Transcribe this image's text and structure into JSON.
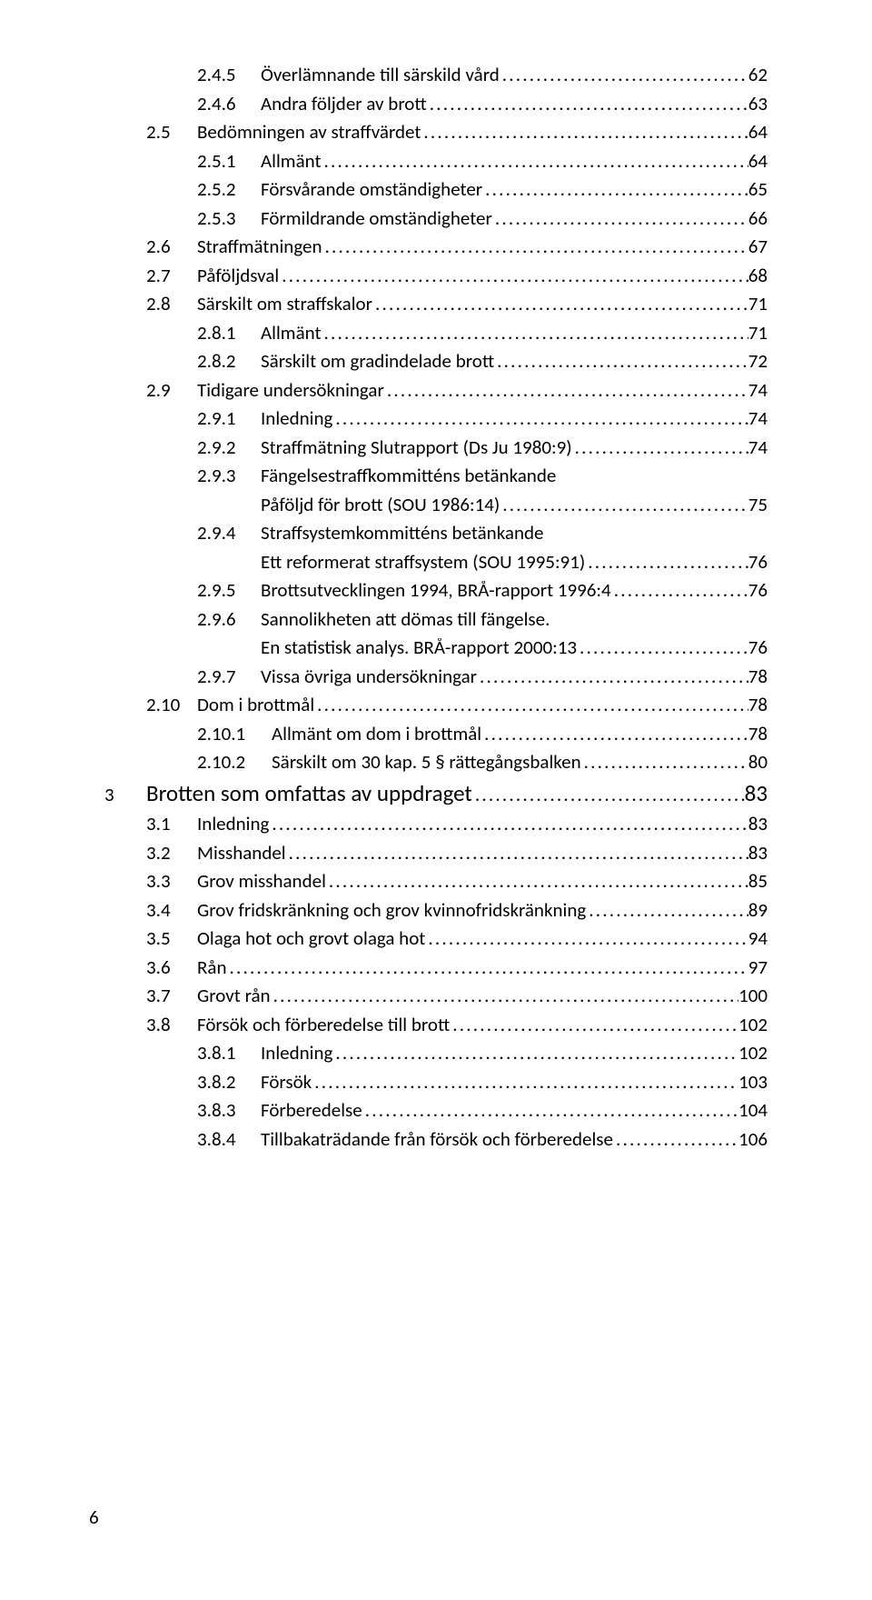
{
  "leader": "...............................................................................................................................................................",
  "indents": {
    "chapter_num_w": 46,
    "l1_pad": 46,
    "l1_num_w": 56,
    "l2_pad": 102,
    "l2a_num_w": 70,
    "l2b_num_w": 82,
    "l3_pad_a": 172,
    "l3_pad_b": 184
  },
  "toc": [
    {
      "lvl": "l2a",
      "num": "2.4.5",
      "label": "Överlämnande till särskild vård",
      "page": "62"
    },
    {
      "lvl": "l2a",
      "num": "2.4.6",
      "label": "Andra följder av brott",
      "page": "63"
    },
    {
      "lvl": "l1",
      "num": "2.5",
      "label": "Bedömningen av straffvärdet",
      "page": "64"
    },
    {
      "lvl": "l2a",
      "num": "2.5.1",
      "label": "Allmänt",
      "page": "64"
    },
    {
      "lvl": "l2a",
      "num": "2.5.2",
      "label": "Försvårande omständigheter",
      "page": "65"
    },
    {
      "lvl": "l2a",
      "num": "2.5.3",
      "label": "Förmildrande omständigheter",
      "page": "66"
    },
    {
      "lvl": "l1",
      "num": "2.6",
      "label": "Straffmätningen",
      "page": "67"
    },
    {
      "lvl": "l1",
      "num": "2.7",
      "label": "Påföljdsval",
      "page": "68"
    },
    {
      "lvl": "l1",
      "num": "2.8",
      "label": "Särskilt om straffskalor",
      "page": "71"
    },
    {
      "lvl": "l2a",
      "num": "2.8.1",
      "label": "Allmänt",
      "page": "71"
    },
    {
      "lvl": "l2a",
      "num": "2.8.2",
      "label": "Särskilt om gradindelade brott",
      "page": "72"
    },
    {
      "lvl": "l1",
      "num": "2.9",
      "label": "Tidigare undersökningar",
      "page": "74"
    },
    {
      "lvl": "l2a",
      "num": "2.9.1",
      "label": "Inledning",
      "page": "74"
    },
    {
      "lvl": "l2a",
      "num": "2.9.2",
      "label": "Straffmätning Slutrapport (Ds Ju 1980:9) ",
      "page": "74"
    },
    {
      "lvl": "l2a",
      "num": "2.9.3",
      "label": "Fängelsestraffkommitténs betänkande",
      "page": null
    },
    {
      "lvl": "l3a",
      "num": "",
      "label": "Påföljd för brott (SOU 1986:14)",
      "page": "75"
    },
    {
      "lvl": "l2a",
      "num": "2.9.4",
      "label": "Straffsystemkommitténs betänkande",
      "page": null
    },
    {
      "lvl": "l3a",
      "num": "",
      "label": "Ett reformerat straffsystem (SOU 1995:91)",
      "page": "76"
    },
    {
      "lvl": "l2a",
      "num": "2.9.5",
      "label": "Brottsutvecklingen 1994, BRÅ-rapport 1996:4",
      "page": "76"
    },
    {
      "lvl": "l2a",
      "num": "2.9.6",
      "label": "Sannolikheten att dömas till fängelse.",
      "page": null
    },
    {
      "lvl": "l3a",
      "num": "",
      "label": "En statistisk analys. BRÅ-rapport 2000:13",
      "page": "76"
    },
    {
      "lvl": "l2a",
      "num": "2.9.7",
      "label": "Vissa övriga undersökningar",
      "page": "78"
    },
    {
      "lvl": "l1",
      "num": "2.10",
      "label": "Dom i brottmål",
      "page": "78"
    },
    {
      "lvl": "l2b",
      "num": "2.10.1",
      "label": "Allmänt om dom i brottmål",
      "page": "78"
    },
    {
      "lvl": "l2b",
      "num": "2.10.2",
      "label": "Särskilt om 30 kap. 5 § rättegångsbalken",
      "page": "80"
    },
    {
      "lvl": "ch",
      "num": "3",
      "label": "Brotten som omfattas av uppdraget",
      "page": "83"
    },
    {
      "lvl": "l1",
      "num": "3.1",
      "label": "Inledning",
      "page": "83"
    },
    {
      "lvl": "l1",
      "num": "3.2",
      "label": "Misshandel",
      "page": "83"
    },
    {
      "lvl": "l1",
      "num": "3.3",
      "label": "Grov misshandel",
      "page": "85"
    },
    {
      "lvl": "l1",
      "num": "3.4",
      "label": "Grov fridskränkning och grov kvinnofridskränkning",
      "page": "89"
    },
    {
      "lvl": "l1",
      "num": "3.5",
      "label": "Olaga hot och grovt olaga hot",
      "page": "94"
    },
    {
      "lvl": "l1",
      "num": "3.6",
      "label": "Rån ",
      "page": "97"
    },
    {
      "lvl": "l1",
      "num": "3.7",
      "label": "Grovt rån",
      "page": "100"
    },
    {
      "lvl": "l1",
      "num": "3.8",
      "label": "Försök och förberedelse till brott",
      "page": "102"
    },
    {
      "lvl": "l2a",
      "num": "3.8.1",
      "label": "Inledning",
      "page": "102"
    },
    {
      "lvl": "l2a",
      "num": "3.8.2",
      "label": "Försök",
      "page": "103"
    },
    {
      "lvl": "l2a",
      "num": "3.8.3",
      "label": "Förberedelse",
      "page": "104"
    },
    {
      "lvl": "l2a",
      "num": "3.8.4",
      "label": "Tillbakaträdande från försök och förberedelse",
      "page": "106"
    }
  ],
  "page_number": "6"
}
